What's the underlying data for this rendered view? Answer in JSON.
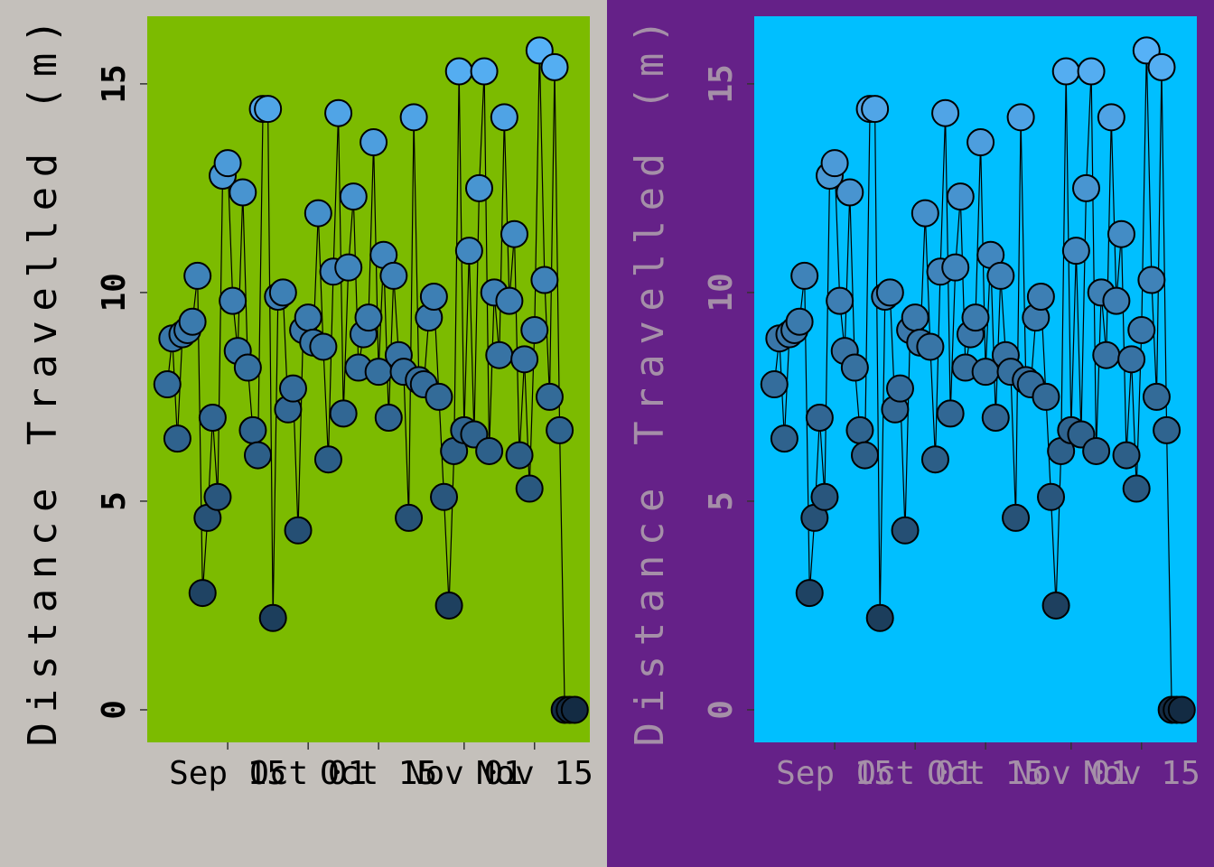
{
  "chart_data": [
    {
      "type": "line-scatter",
      "background": "#c4c0bb",
      "panel_background": "#7cbb00",
      "text_color": "#000000",
      "line_color": "#000000",
      "color_scale": {
        "low": "#132B43",
        "high": "#56B1F7"
      },
      "y_label": "Distance Travelled (m)",
      "x": [
        "09-03",
        "09-04",
        "09-05",
        "09-06",
        "09-07",
        "09-08",
        "09-09",
        "09-10",
        "09-11",
        "09-12",
        "09-13",
        "09-14",
        "09-15",
        "09-16",
        "09-17",
        "09-18",
        "09-19",
        "09-20",
        "09-21",
        "09-22",
        "09-23",
        "09-24",
        "09-25",
        "09-26",
        "09-27",
        "09-28",
        "09-29",
        "09-30",
        "10-01",
        "10-02",
        "10-03",
        "10-04",
        "10-05",
        "10-06",
        "10-07",
        "10-08",
        "10-09",
        "10-10",
        "10-11",
        "10-12",
        "10-13",
        "10-14",
        "10-15",
        "10-16",
        "10-17",
        "10-18",
        "10-19",
        "10-20",
        "10-21",
        "10-22",
        "10-23",
        "10-24",
        "10-25",
        "10-26",
        "10-27",
        "10-28",
        "10-29",
        "10-30",
        "10-31",
        "11-01",
        "11-02",
        "11-03",
        "11-04",
        "11-05",
        "11-06",
        "11-07",
        "11-08",
        "11-09",
        "11-10",
        "11-11",
        "11-12",
        "11-13",
        "11-14",
        "11-15",
        "11-16",
        "11-17",
        "11-18",
        "11-19",
        "11-20",
        "11-21",
        "11-22",
        "11-23"
      ],
      "values": [
        7.8,
        8.9,
        6.5,
        9.0,
        9.1,
        9.3,
        10.4,
        2.8,
        4.6,
        7.0,
        5.1,
        12.8,
        13.1,
        9.8,
        8.6,
        12.4,
        8.2,
        6.7,
        6.1,
        14.4,
        14.4,
        2.2,
        9.9,
        10.0,
        7.2,
        7.7,
        4.3,
        9.1,
        9.4,
        8.8,
        11.9,
        8.7,
        6.0,
        10.5,
        14.3,
        7.1,
        10.6,
        12.3,
        8.2,
        9.0,
        9.4,
        13.6,
        8.1,
        10.9,
        7.0,
        10.4,
        8.5,
        8.1,
        4.6,
        14.2,
        7.9,
        7.8,
        9.4,
        9.9,
        7.5,
        5.1,
        2.5,
        6.2,
        15.3,
        6.7,
        11.0,
        6.6,
        12.5,
        15.3,
        6.2,
        10.0,
        8.5,
        14.2,
        9.8,
        11.4,
        6.1,
        8.4,
        5.3,
        9.1,
        15.8,
        10.3,
        7.5,
        15.4,
        6.7,
        0,
        0,
        0
      ],
      "xlim": [
        "08-30",
        "11-26"
      ],
      "xticks": [
        {
          "value": "09-15",
          "label": "Sep 15"
        },
        {
          "value": "10-01",
          "label": "Oct 01"
        },
        {
          "value": "10-15",
          "label": "Oct 15"
        },
        {
          "value": "11-01",
          "label": "Nov 01"
        },
        {
          "value": "11-15",
          "label": "Nov 15"
        }
      ],
      "ylim": [
        -0.78,
        16.62
      ],
      "yticks": [
        0,
        5,
        10,
        15
      ]
    },
    {
      "type": "line-scatter",
      "background": "#652188",
      "panel_background": "#00bfff",
      "text_color": "#a58fa8",
      "line_color": "#000000",
      "color_scale": {
        "low": "#132B43",
        "high": "#56B1F7"
      },
      "y_label": "Distance Travelled (m)",
      "x": [
        "09-03",
        "09-04",
        "09-05",
        "09-06",
        "09-07",
        "09-08",
        "09-09",
        "09-10",
        "09-11",
        "09-12",
        "09-13",
        "09-14",
        "09-15",
        "09-16",
        "09-17",
        "09-18",
        "09-19",
        "09-20",
        "09-21",
        "09-22",
        "09-23",
        "09-24",
        "09-25",
        "09-26",
        "09-27",
        "09-28",
        "09-29",
        "09-30",
        "10-01",
        "10-02",
        "10-03",
        "10-04",
        "10-05",
        "10-06",
        "10-07",
        "10-08",
        "10-09",
        "10-10",
        "10-11",
        "10-12",
        "10-13",
        "10-14",
        "10-15",
        "10-16",
        "10-17",
        "10-18",
        "10-19",
        "10-20",
        "10-21",
        "10-22",
        "10-23",
        "10-24",
        "10-25",
        "10-26",
        "10-27",
        "10-28",
        "10-29",
        "10-30",
        "10-31",
        "11-01",
        "11-02",
        "11-03",
        "11-04",
        "11-05",
        "11-06",
        "11-07",
        "11-08",
        "11-09",
        "11-10",
        "11-11",
        "11-12",
        "11-13",
        "11-14",
        "11-15",
        "11-16",
        "11-17",
        "11-18",
        "11-19",
        "11-20",
        "11-21",
        "11-22",
        "11-23"
      ],
      "values": [
        7.8,
        8.9,
        6.5,
        9.0,
        9.1,
        9.3,
        10.4,
        2.8,
        4.6,
        7.0,
        5.1,
        12.8,
        13.1,
        9.8,
        8.6,
        12.4,
        8.2,
        6.7,
        6.1,
        14.4,
        14.4,
        2.2,
        9.9,
        10.0,
        7.2,
        7.7,
        4.3,
        9.1,
        9.4,
        8.8,
        11.9,
        8.7,
        6.0,
        10.5,
        14.3,
        7.1,
        10.6,
        12.3,
        8.2,
        9.0,
        9.4,
        13.6,
        8.1,
        10.9,
        7.0,
        10.4,
        8.5,
        8.1,
        4.6,
        14.2,
        7.9,
        7.8,
        9.4,
        9.9,
        7.5,
        5.1,
        2.5,
        6.2,
        15.3,
        6.7,
        11.0,
        6.6,
        12.5,
        15.3,
        6.2,
        10.0,
        8.5,
        14.2,
        9.8,
        11.4,
        6.1,
        8.4,
        5.3,
        9.1,
        15.8,
        10.3,
        7.5,
        15.4,
        6.7,
        0,
        0,
        0
      ],
      "xlim": [
        "08-30",
        "11-26"
      ],
      "xticks": [
        {
          "value": "09-15",
          "label": "Sep 15"
        },
        {
          "value": "10-01",
          "label": "Oct 01"
        },
        {
          "value": "10-15",
          "label": "Oct 15"
        },
        {
          "value": "11-01",
          "label": "Nov 01"
        },
        {
          "value": "11-15",
          "label": "Nov 15"
        }
      ],
      "ylim": [
        -0.78,
        16.62
      ],
      "yticks": [
        0,
        5,
        10,
        15
      ]
    }
  ]
}
